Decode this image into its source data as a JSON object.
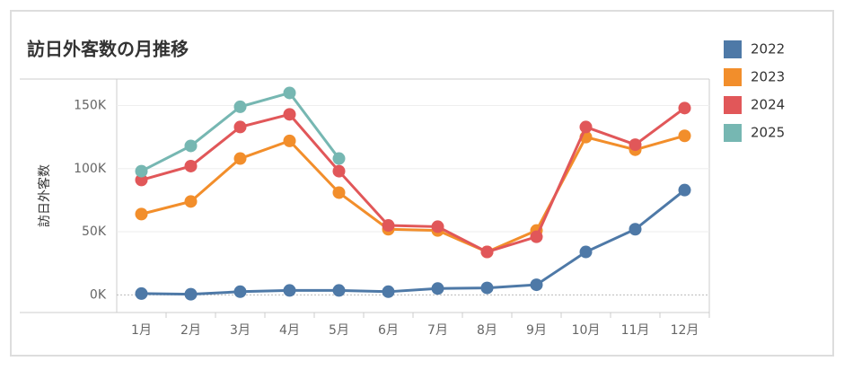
{
  "chart_data": {
    "type": "line",
    "title": "訪日外客数の月推移",
    "ylabel": "訪日外客数",
    "categories": [
      "1月",
      "2月",
      "3月",
      "4月",
      "5月",
      "6月",
      "7月",
      "8月",
      "9月",
      "10月",
      "11月",
      "12月"
    ],
    "series": [
      {
        "name": "2022",
        "color": "#4e79a7",
        "values": [
          1000,
          500,
          2500,
          3500,
          3500,
          2500,
          5000,
          5500,
          8000,
          34000,
          52000,
          83000
        ]
      },
      {
        "name": "2023",
        "color": "#f28e2b",
        "values": [
          64000,
          74000,
          108000,
          122000,
          81000,
          52000,
          51000,
          34000,
          51000,
          125000,
          115000,
          126000
        ]
      },
      {
        "name": "2024",
        "color": "#e15759",
        "values": [
          91000,
          102000,
          133000,
          143000,
          98000,
          55000,
          54000,
          34000,
          46000,
          133000,
          119000,
          148000
        ]
      },
      {
        "name": "2025",
        "color": "#76b7b2",
        "values": [
          98000,
          118000,
          149000,
          160000,
          108000,
          null,
          null,
          null,
          null,
          null,
          null,
          null
        ]
      }
    ],
    "ylim": [
      -14000,
      171000
    ],
    "yticks": [
      {
        "value": 0,
        "label": "0K"
      },
      {
        "value": 50000,
        "label": "50K"
      },
      {
        "value": 100000,
        "label": "100K"
      },
      {
        "value": 150000,
        "label": "150K"
      }
    ],
    "grid": true,
    "legend": "right"
  }
}
